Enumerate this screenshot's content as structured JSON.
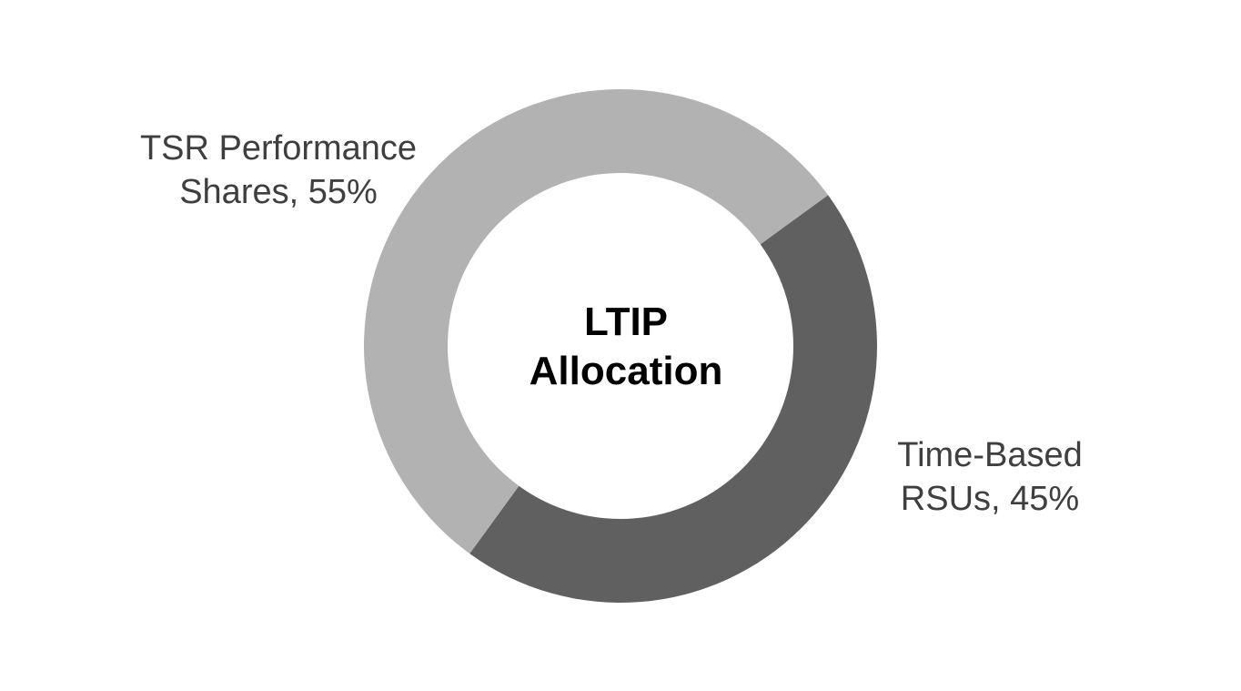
{
  "chart_data": {
    "type": "pie",
    "variant": "donut",
    "title_lines": [
      "LTIP",
      "Allocation"
    ],
    "slices": [
      {
        "name": "Time-Based RSUs",
        "value": 45,
        "label_lines": [
          "Time-Based",
          "RSUs, 45%"
        ],
        "color": "#606060"
      },
      {
        "name": "TSR Performance Shares",
        "value": 55,
        "label_lines": [
          "TSR Performance",
          "Shares, 55%"
        ],
        "color": "#b2b2b2"
      }
    ],
    "legend": "none"
  }
}
